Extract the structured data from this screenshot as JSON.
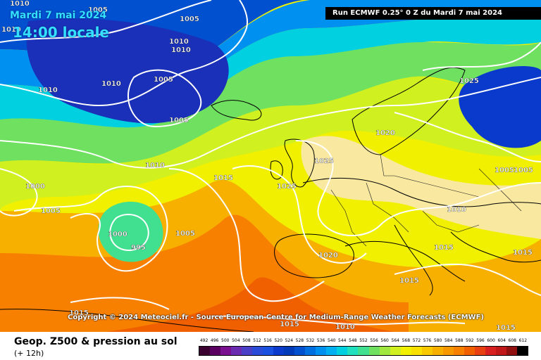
{
  "overlay": {
    "date": "Mardi 7 mai 2024",
    "local_time": "14:00 locale",
    "run_info": "Run ECMWF 0.25° 0 Z du Mardi 7 mai 2024",
    "copyright": "Copyright © 2024 Meteociel.fr - Source European Centre for Medium-Range Weather Forecasts (ECMWF)"
  },
  "legend": {
    "title": "Geop. Z500 & pression au sol",
    "lead_time": "(+ 12h)",
    "scale_values": [
      "492",
      "496",
      "500",
      "504",
      "508",
      "512",
      "516",
      "520",
      "524",
      "528",
      "532",
      "536",
      "540",
      "544",
      "548",
      "552",
      "556",
      "560",
      "564",
      "568",
      "572",
      "576",
      "580",
      "584",
      "588",
      "592",
      "596",
      "600",
      "604",
      "608",
      "612"
    ],
    "scale_colors": [
      "#3a0030",
      "#5a0060",
      "#7a1090",
      "#6a2bb0",
      "#4a40c8",
      "#2a4ad8",
      "#1a50e0",
      "#0a3acc",
      "#003ab8",
      "#0050d0",
      "#0070e0",
      "#0090f0",
      "#00b0f0",
      "#00d0e0",
      "#20e0c0",
      "#40e090",
      "#70e060",
      "#a0e840",
      "#d0f020",
      "#f0f000",
      "#f8e000",
      "#f8c800",
      "#f8b000",
      "#f89800",
      "#f88000",
      "#f06000",
      "#e84010",
      "#d82020",
      "#c01818",
      "#901010",
      "#000000"
    ]
  },
  "isobars": {
    "labels": [
      "1010",
      "1005",
      "1005",
      "1010",
      "1010",
      "1010",
      "1005",
      "1010",
      "1005",
      "1025",
      "1010",
      "1010",
      "1005",
      "1015",
      "1000",
      "1005",
      "1025",
      "1025",
      "1020",
      "1000",
      "995",
      "1005",
      "1010",
      "1015",
      "1020",
      "1015",
      "1015",
      "1015",
      "1015",
      "1015",
      "1010",
      "1005"
    ]
  }
}
